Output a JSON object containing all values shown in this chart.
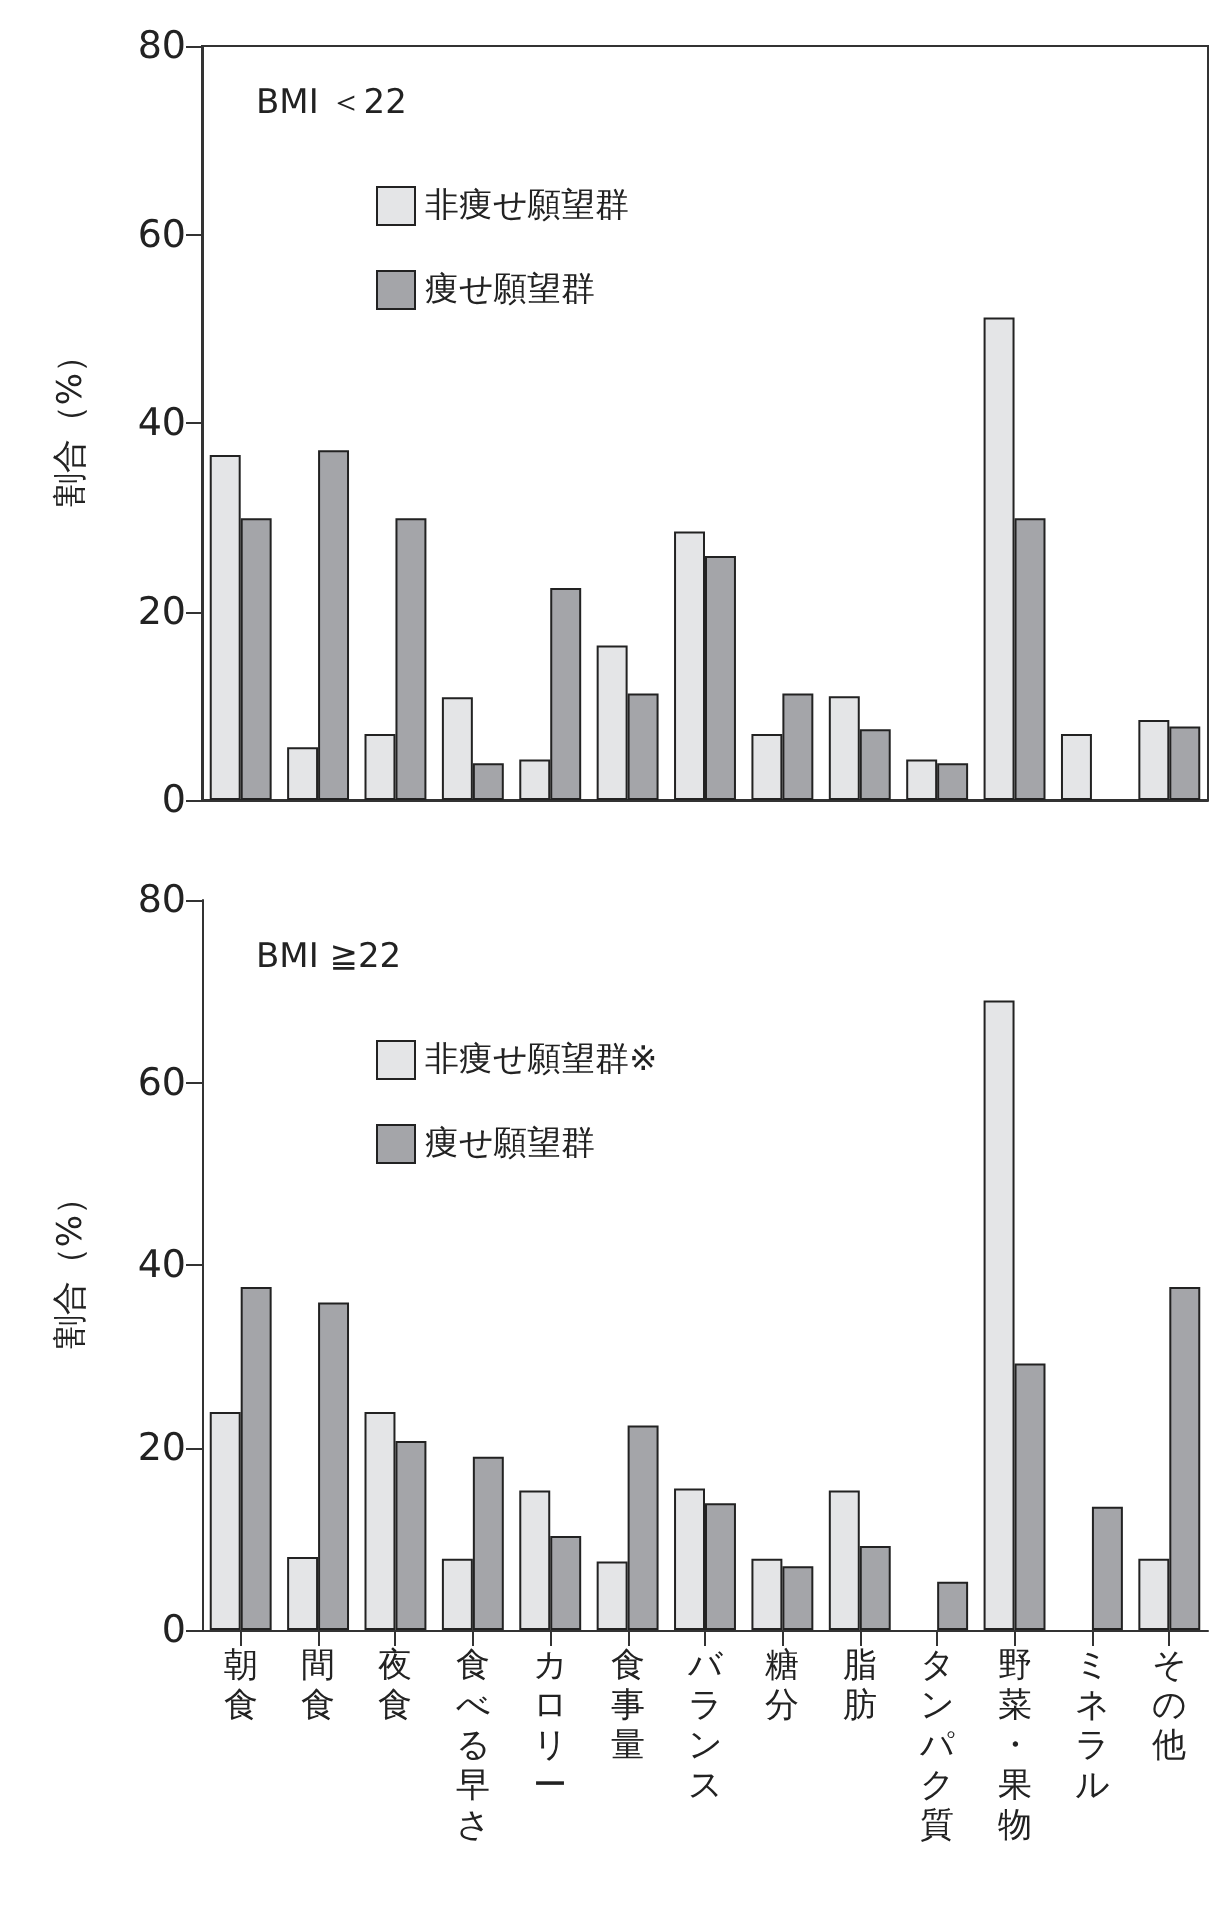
{
  "chart_data": [
    {
      "type": "bar",
      "ylabel": "割合（%）",
      "annotations": [
        "BMI ＜22"
      ],
      "categories": [
        "朝食",
        "間食",
        "夜食",
        "食べる早さ",
        "カロリー",
        "食事量",
        "バランス",
        "糖分",
        "脂肪",
        "タンパク質",
        "野菜・果物",
        "ミネラル",
        "その他"
      ],
      "series": [
        {
          "name": "非痩せ願望群",
          "color": "#e4e5e7",
          "values": [
            36.6,
            5.6,
            7.0,
            10.9,
            4.3,
            16.4,
            28.5,
            7.0,
            11.0,
            4.3,
            51.2,
            7.0,
            8.5
          ]
        },
        {
          "name": "痩せ願望群",
          "color": "#a4a5a9",
          "values": [
            29.9,
            37.1,
            29.9,
            3.9,
            22.5,
            11.3,
            25.9,
            11.3,
            7.5,
            3.9,
            29.9,
            null,
            7.8
          ]
        }
      ],
      "ylim": [
        0,
        80
      ],
      "yticks": [
        0,
        20,
        40,
        60,
        80
      ],
      "grid": false,
      "legend": "top left",
      "tick_labels": "y"
    },
    {
      "type": "bar",
      "ylabel": "割合（%）",
      "annotations": [
        "BMI ≧22"
      ],
      "categories": [
        "朝食",
        "間食",
        "夜食",
        "食べる早さ",
        "カロリー",
        "食事量",
        "バランス",
        "糖分",
        "脂肪",
        "タンパク質",
        "野菜・果物",
        "ミネラル",
        "その他"
      ],
      "series": [
        {
          "name": "非痩せ願望群※",
          "color": "#e4e5e7",
          "values": [
            23.9,
            8.0,
            23.9,
            7.8,
            15.3,
            7.5,
            15.5,
            7.8,
            15.3,
            null,
            69.0,
            null,
            7.8
          ]
        },
        {
          "name": "痩せ願望群",
          "color": "#a4a5a9",
          "values": [
            37.6,
            35.9,
            20.7,
            19.0,
            10.3,
            22.4,
            13.9,
            7.0,
            9.2,
            5.3,
            29.2,
            13.5,
            37.6
          ]
        }
      ],
      "ylim": [
        0,
        80
      ],
      "yticks": [
        0,
        20,
        40,
        60,
        80
      ],
      "grid": false,
      "legend": "top left"
    }
  ]
}
